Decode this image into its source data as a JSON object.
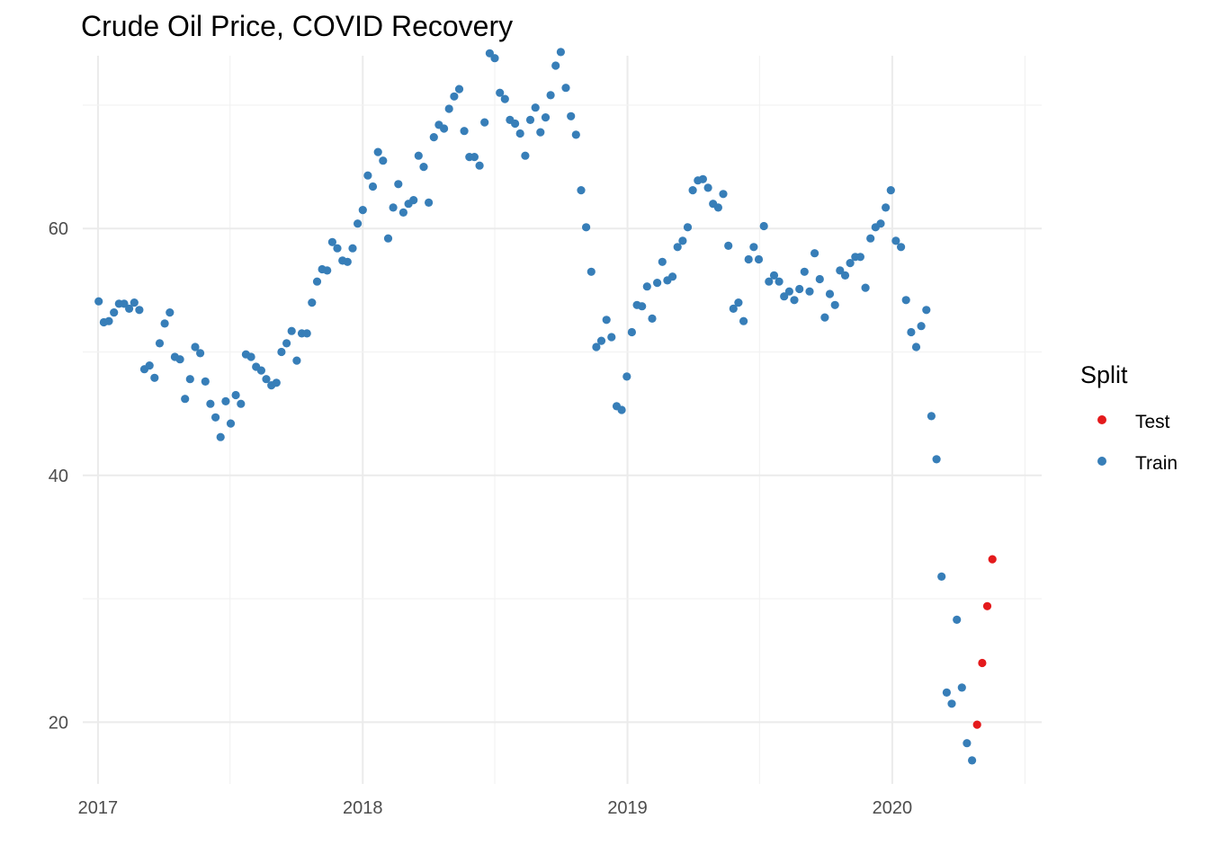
{
  "chart_data": {
    "type": "scatter",
    "title": "Crude Oil Price, COVID Recovery",
    "xlabel": "",
    "ylabel": "",
    "x_ticks": [
      "2017",
      "2018",
      "2019",
      "2020"
    ],
    "y_ticks": [
      20,
      40,
      60
    ],
    "xlim": [
      "2016-12-11",
      "2020-07-25"
    ],
    "ylim": [
      15,
      74
    ],
    "grid": true,
    "legend": {
      "title": "Split",
      "position": "right",
      "entries": [
        "Test",
        "Train"
      ]
    },
    "colors": {
      "Test": "#e41a1c",
      "Train": "#377eb8"
    },
    "series": [
      {
        "name": "Train",
        "points": [
          [
            "2017-01-02",
            54.1
          ],
          [
            "2017-01-09",
            52.4
          ],
          [
            "2017-01-16",
            52.5
          ],
          [
            "2017-01-23",
            53.2
          ],
          [
            "2017-01-30",
            53.9
          ],
          [
            "2017-02-06",
            53.9
          ],
          [
            "2017-02-13",
            53.5
          ],
          [
            "2017-02-20",
            54.0
          ],
          [
            "2017-02-27",
            53.4
          ],
          [
            "2017-03-06",
            48.6
          ],
          [
            "2017-03-13",
            48.9
          ],
          [
            "2017-03-20",
            47.9
          ],
          [
            "2017-03-27",
            50.7
          ],
          [
            "2017-04-03",
            52.3
          ],
          [
            "2017-04-10",
            53.2
          ],
          [
            "2017-04-17",
            49.6
          ],
          [
            "2017-04-24",
            49.4
          ],
          [
            "2017-05-01",
            46.2
          ],
          [
            "2017-05-08",
            47.8
          ],
          [
            "2017-05-15",
            50.4
          ],
          [
            "2017-05-22",
            49.9
          ],
          [
            "2017-05-29",
            47.6
          ],
          [
            "2017-06-05",
            45.8
          ],
          [
            "2017-06-12",
            44.7
          ],
          [
            "2017-06-19",
            43.1
          ],
          [
            "2017-06-26",
            46.0
          ],
          [
            "2017-07-03",
            44.2
          ],
          [
            "2017-07-10",
            46.5
          ],
          [
            "2017-07-17",
            45.8
          ],
          [
            "2017-07-24",
            49.8
          ],
          [
            "2017-07-31",
            49.6
          ],
          [
            "2017-08-07",
            48.8
          ],
          [
            "2017-08-14",
            48.5
          ],
          [
            "2017-08-21",
            47.8
          ],
          [
            "2017-08-28",
            47.3
          ],
          [
            "2017-09-04",
            47.5
          ],
          [
            "2017-09-11",
            50.0
          ],
          [
            "2017-09-18",
            50.7
          ],
          [
            "2017-09-25",
            51.7
          ],
          [
            "2017-10-02",
            49.3
          ],
          [
            "2017-10-09",
            51.5
          ],
          [
            "2017-10-16",
            51.5
          ],
          [
            "2017-10-23",
            54.0
          ],
          [
            "2017-10-30",
            55.7
          ],
          [
            "2017-11-06",
            56.7
          ],
          [
            "2017-11-13",
            56.6
          ],
          [
            "2017-11-20",
            58.9
          ],
          [
            "2017-11-27",
            58.4
          ],
          [
            "2017-12-04",
            57.4
          ],
          [
            "2017-12-11",
            57.3
          ],
          [
            "2017-12-18",
            58.4
          ],
          [
            "2017-12-25",
            60.4
          ],
          [
            "2018-01-01",
            61.5
          ],
          [
            "2018-01-08",
            64.3
          ],
          [
            "2018-01-15",
            63.4
          ],
          [
            "2018-01-22",
            66.2
          ],
          [
            "2018-01-29",
            65.5
          ],
          [
            "2018-02-05",
            59.2
          ],
          [
            "2018-02-12",
            61.7
          ],
          [
            "2018-02-19",
            63.6
          ],
          [
            "2018-02-26",
            61.3
          ],
          [
            "2018-03-05",
            62.0
          ],
          [
            "2018-03-12",
            62.3
          ],
          [
            "2018-03-19",
            65.9
          ],
          [
            "2018-03-26",
            65.0
          ],
          [
            "2018-04-02",
            62.1
          ],
          [
            "2018-04-09",
            67.4
          ],
          [
            "2018-04-16",
            68.4
          ],
          [
            "2018-04-23",
            68.1
          ],
          [
            "2018-04-30",
            69.7
          ],
          [
            "2018-05-07",
            70.7
          ],
          [
            "2018-05-14",
            71.3
          ],
          [
            "2018-05-21",
            67.9
          ],
          [
            "2018-05-28",
            65.8
          ],
          [
            "2018-06-04",
            65.8
          ],
          [
            "2018-06-11",
            65.1
          ],
          [
            "2018-06-18",
            68.6
          ],
          [
            "2018-06-25",
            74.2
          ],
          [
            "2018-07-02",
            73.8
          ],
          [
            "2018-07-09",
            71.0
          ],
          [
            "2018-07-16",
            70.5
          ],
          [
            "2018-07-23",
            68.8
          ],
          [
            "2018-07-30",
            68.5
          ],
          [
            "2018-08-06",
            67.7
          ],
          [
            "2018-08-13",
            65.9
          ],
          [
            "2018-08-20",
            68.8
          ],
          [
            "2018-08-27",
            69.8
          ],
          [
            "2018-09-03",
            67.8
          ],
          [
            "2018-09-10",
            69.0
          ],
          [
            "2018-09-17",
            70.8
          ],
          [
            "2018-09-24",
            73.2
          ],
          [
            "2018-10-01",
            74.3
          ],
          [
            "2018-10-08",
            71.4
          ],
          [
            "2018-10-15",
            69.1
          ],
          [
            "2018-10-22",
            67.6
          ],
          [
            "2018-10-29",
            63.1
          ],
          [
            "2018-11-05",
            60.1
          ],
          [
            "2018-11-12",
            56.5
          ],
          [
            "2018-11-19",
            50.4
          ],
          [
            "2018-11-26",
            50.9
          ],
          [
            "2018-12-03",
            52.6
          ],
          [
            "2018-12-10",
            51.2
          ],
          [
            "2018-12-17",
            45.6
          ],
          [
            "2018-12-24",
            45.3
          ],
          [
            "2018-12-31",
            48.0
          ],
          [
            "2019-01-07",
            51.6
          ],
          [
            "2019-01-14",
            53.8
          ],
          [
            "2019-01-21",
            53.7
          ],
          [
            "2019-01-28",
            55.3
          ],
          [
            "2019-02-04",
            52.7
          ],
          [
            "2019-02-11",
            55.6
          ],
          [
            "2019-02-18",
            57.3
          ],
          [
            "2019-02-25",
            55.8
          ],
          [
            "2019-03-04",
            56.1
          ],
          [
            "2019-03-11",
            58.5
          ],
          [
            "2019-03-18",
            59.0
          ],
          [
            "2019-03-25",
            60.1
          ],
          [
            "2019-04-01",
            63.1
          ],
          [
            "2019-04-08",
            63.9
          ],
          [
            "2019-04-15",
            64.0
          ],
          [
            "2019-04-22",
            63.3
          ],
          [
            "2019-04-29",
            62.0
          ],
          [
            "2019-05-06",
            61.7
          ],
          [
            "2019-05-13",
            62.8
          ],
          [
            "2019-05-20",
            58.6
          ],
          [
            "2019-05-27",
            53.5
          ],
          [
            "2019-06-03",
            54.0
          ],
          [
            "2019-06-10",
            52.5
          ],
          [
            "2019-06-17",
            57.5
          ],
          [
            "2019-06-24",
            58.5
          ],
          [
            "2019-07-01",
            57.5
          ],
          [
            "2019-07-08",
            60.2
          ],
          [
            "2019-07-15",
            55.7
          ],
          [
            "2019-07-22",
            56.2
          ],
          [
            "2019-07-29",
            55.7
          ],
          [
            "2019-08-05",
            54.5
          ],
          [
            "2019-08-12",
            54.9
          ],
          [
            "2019-08-19",
            54.2
          ],
          [
            "2019-08-26",
            55.1
          ],
          [
            "2019-09-02",
            56.5
          ],
          [
            "2019-09-09",
            54.9
          ],
          [
            "2019-09-16",
            58.0
          ],
          [
            "2019-09-23",
            55.9
          ],
          [
            "2019-09-30",
            52.8
          ],
          [
            "2019-10-07",
            54.7
          ],
          [
            "2019-10-14",
            53.8
          ],
          [
            "2019-10-21",
            56.6
          ],
          [
            "2019-10-28",
            56.2
          ],
          [
            "2019-11-04",
            57.2
          ],
          [
            "2019-11-11",
            57.7
          ],
          [
            "2019-11-18",
            57.7
          ],
          [
            "2019-11-25",
            55.2
          ],
          [
            "2019-12-02",
            59.2
          ],
          [
            "2019-12-09",
            60.1
          ],
          [
            "2019-12-16",
            60.4
          ],
          [
            "2019-12-23",
            61.7
          ],
          [
            "2019-12-30",
            63.1
          ],
          [
            "2020-01-06",
            59.0
          ],
          [
            "2020-01-13",
            58.5
          ],
          [
            "2020-01-20",
            54.2
          ],
          [
            "2020-01-27",
            51.6
          ],
          [
            "2020-02-03",
            50.4
          ],
          [
            "2020-02-10",
            52.1
          ],
          [
            "2020-02-17",
            53.4
          ],
          [
            "2020-02-24",
            44.8
          ],
          [
            "2020-03-02",
            41.3
          ],
          [
            "2020-03-09",
            31.8
          ],
          [
            "2020-03-16",
            22.4
          ],
          [
            "2020-03-23",
            21.5
          ],
          [
            "2020-03-30",
            28.3
          ],
          [
            "2020-04-06",
            22.8
          ],
          [
            "2020-04-13",
            18.3
          ],
          [
            "2020-04-20",
            16.9
          ]
        ]
      },
      {
        "name": "Test",
        "points": [
          [
            "2020-04-27",
            19.8
          ],
          [
            "2020-05-04",
            24.8
          ],
          [
            "2020-05-11",
            29.4
          ],
          [
            "2020-05-18",
            33.2
          ]
        ]
      }
    ]
  }
}
